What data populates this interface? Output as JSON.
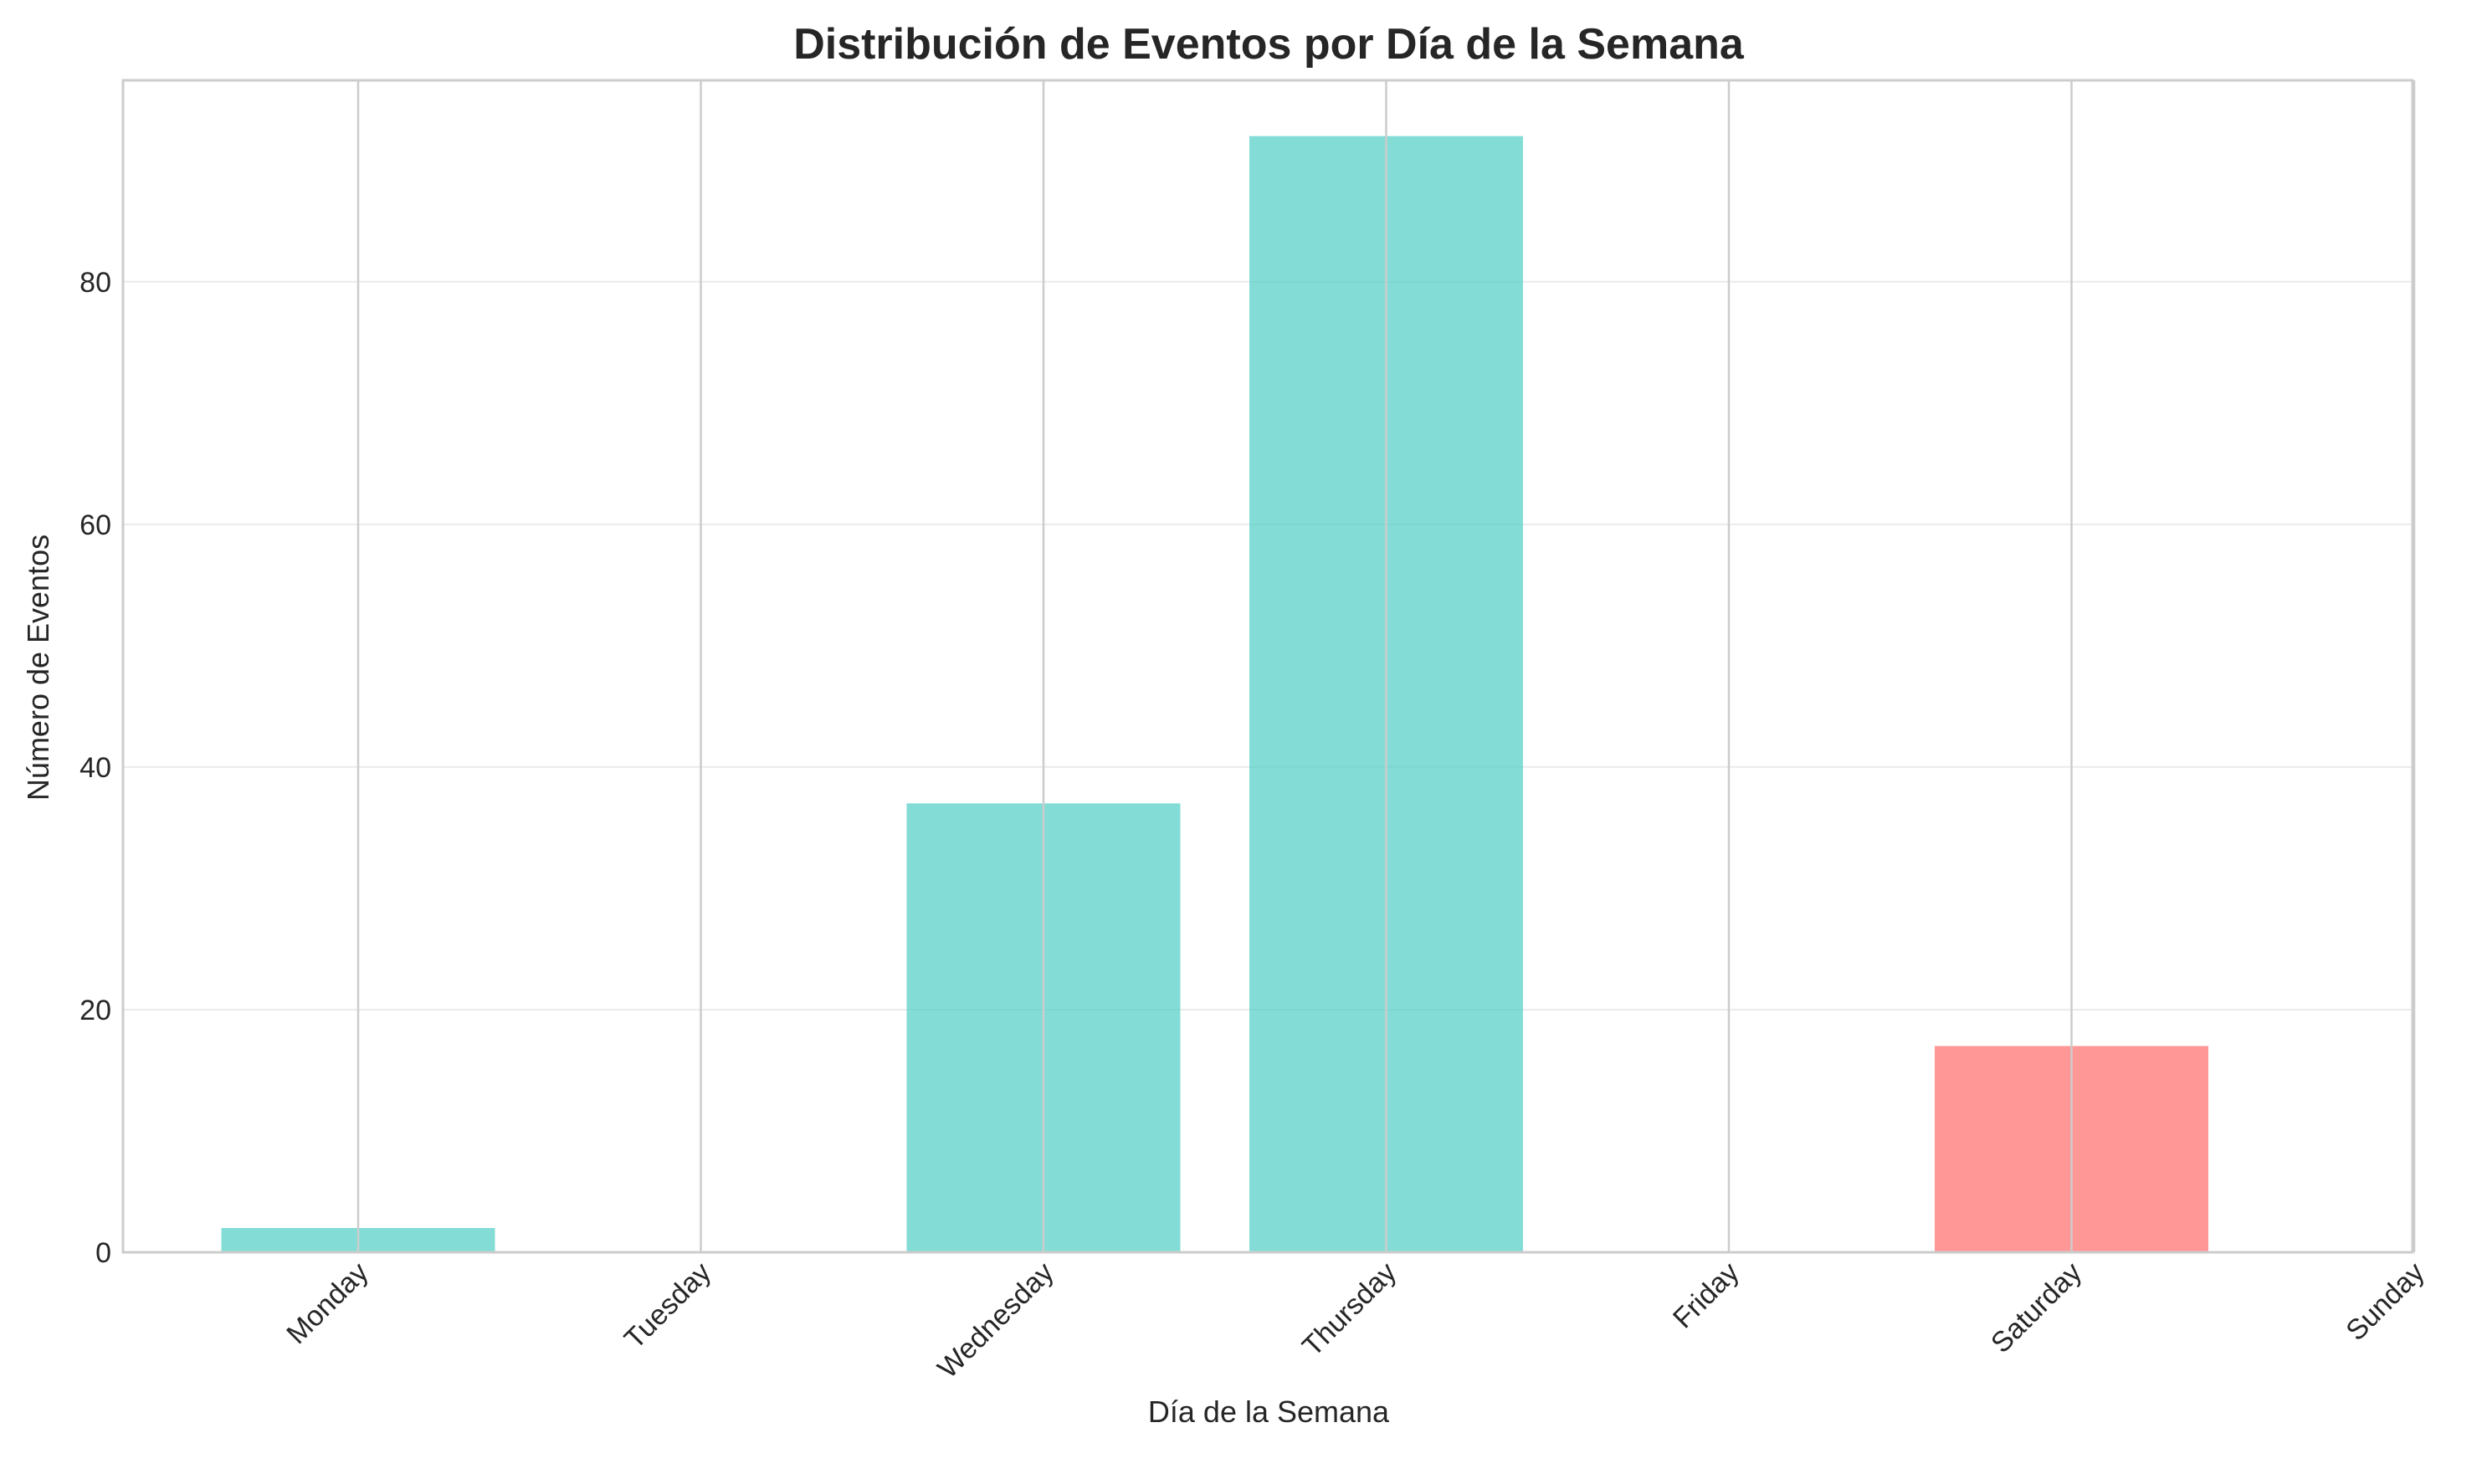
{
  "chart_data": {
    "type": "bar",
    "title": "Distribución de Eventos por Día de la Semana",
    "xlabel": "Día de la Semana",
    "ylabel": "Número de Eventos",
    "categories": [
      "Monday",
      "Tuesday",
      "Wednesday",
      "Thursday",
      "Friday",
      "Saturday",
      "Sunday"
    ],
    "values": [
      2,
      0,
      37,
      92,
      0,
      17,
      0
    ],
    "bar_colors": [
      "#4ecdc4",
      "#4ecdc4",
      "#4ecdc4",
      "#4ecdc4",
      "#4ecdc4",
      "#ff6b6b",
      "#ff6b6b"
    ],
    "ylim": [
      0,
      96.6
    ],
    "yticks": [
      0,
      20,
      40,
      60,
      80
    ],
    "grid": true,
    "legend": "none"
  }
}
